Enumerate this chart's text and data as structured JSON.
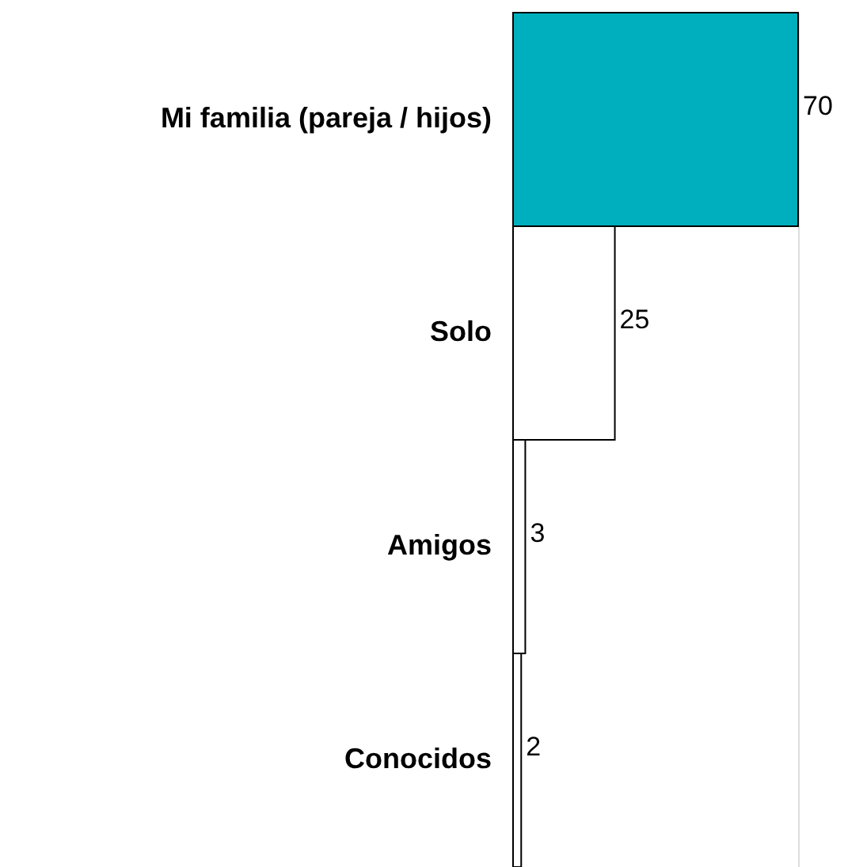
{
  "chart_data": {
    "type": "bar",
    "orientation": "horizontal",
    "categories": [
      "Mi familia (pareja / hijos)",
      "Solo",
      "Amigos",
      "Conocidos"
    ],
    "values": [
      70,
      25,
      3,
      2
    ],
    "colors": [
      "#00afbd",
      "#ffffff",
      "#ffffff",
      "#ffffff"
    ],
    "data_labels": true,
    "grid": false
  }
}
